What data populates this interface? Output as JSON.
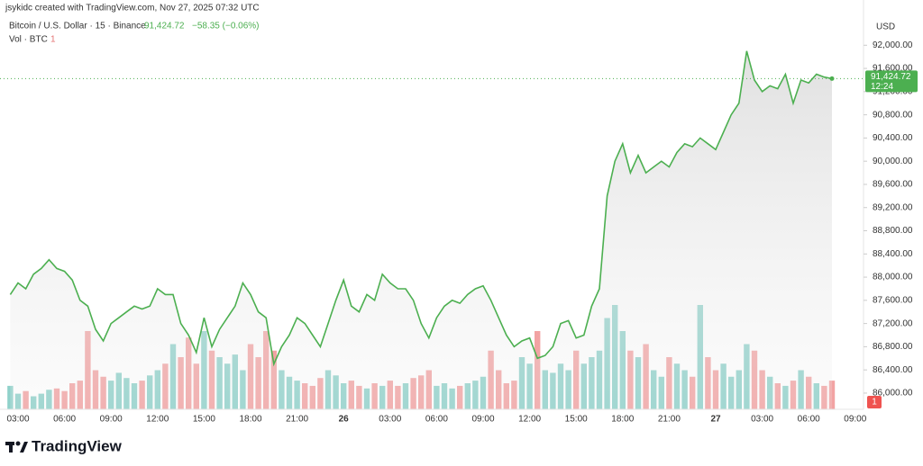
{
  "header": {
    "credit": "jsykidc created with TradingView.com, Nov 27, 2025 07:32 UTC",
    "price": "91,424.72",
    "change": "−58.35 (−0.06%)",
    "vol_value": "1"
  },
  "footer": {
    "brand": "TradingView"
  },
  "chart_data": {
    "type": "line",
    "currency": "USD",
    "categories": [
      null,
      "03:00",
      null,
      null,
      null,
      null,
      null,
      "06:00",
      null,
      null,
      null,
      null,
      null,
      "09:00",
      null,
      null,
      null,
      null,
      null,
      "12:00",
      null,
      null,
      null,
      null,
      null,
      "15:00",
      null,
      null,
      null,
      null,
      null,
      "18:00",
      null,
      null,
      null,
      null,
      null,
      "21:00",
      null,
      null,
      null,
      null,
      null,
      "26",
      null,
      null,
      null,
      null,
      null,
      "03:00",
      null,
      null,
      null,
      null,
      null,
      "06:00",
      null,
      null,
      null,
      null,
      null,
      "09:00",
      null,
      null,
      null,
      null,
      null,
      "12:00",
      null,
      null,
      null,
      null,
      null,
      "15:00",
      null,
      null,
      null,
      null,
      null,
      "18:00",
      null,
      null,
      null,
      null,
      null,
      "21:00",
      null,
      null,
      null,
      null,
      null,
      "27",
      null,
      null,
      null,
      null,
      null,
      "03:00",
      null,
      null,
      null,
      null,
      null,
      "06:00",
      null,
      null,
      null,
      null,
      null,
      "09:00"
    ],
    "series": [
      {
        "name": "Bitcoin / U.S. Dollar · 15 · Binance",
        "color": "#4caf50",
        "values": [
          87700,
          87900,
          87800,
          88050,
          88150,
          88300,
          88150,
          88100,
          87950,
          87600,
          87500,
          87100,
          86900,
          87200,
          87300,
          87400,
          87500,
          87450,
          87500,
          87800,
          87700,
          87700,
          87200,
          87000,
          86700,
          87300,
          86800,
          87100,
          87300,
          87500,
          87900,
          87700,
          87400,
          87300,
          86500,
          86800,
          87000,
          87300,
          87200,
          87000,
          86800,
          87200,
          87600,
          87950,
          87500,
          87400,
          87700,
          87600,
          88050,
          87900,
          87800,
          87800,
          87600,
          87200,
          86950,
          87300,
          87500,
          87600,
          87550,
          87700,
          87800,
          87850,
          87600,
          87300,
          87000,
          86800,
          86900,
          86950,
          86600,
          86650,
          86800,
          87200,
          87250,
          86950,
          87000,
          87500,
          87800,
          89400,
          90000,
          90300,
          89800,
          90100,
          89800,
          89900,
          90000,
          89900,
          90150,
          90300,
          90250,
          90400,
          90300,
          90200,
          90500,
          90800,
          91000,
          91900,
          91400,
          91200,
          91300,
          91250,
          91500,
          91000,
          91400,
          91350,
          91500,
          91450,
          91424.72,
          null,
          null,
          null
        ]
      }
    ],
    "volume": {
      "name": "Vol · BTC",
      "up_color": "#8fd1ca",
      "down_color": "#f2a3a3",
      "ylim": [
        0,
        300
      ],
      "badge": "1",
      "values": [
        18,
        12,
        14,
        10,
        12,
        15,
        16,
        14,
        20,
        22,
        60,
        30,
        25,
        22,
        28,
        24,
        20,
        22,
        26,
        30,
        35,
        50,
        40,
        55,
        35,
        60,
        45,
        40,
        35,
        42,
        30,
        50,
        40,
        60,
        45,
        30,
        25,
        22,
        20,
        18,
        24,
        30,
        26,
        20,
        22,
        18,
        16,
        20,
        18,
        22,
        18,
        20,
        24,
        26,
        30,
        18,
        20,
        16,
        18,
        20,
        22,
        25,
        45,
        30,
        20,
        22,
        40,
        35,
        60,
        30,
        28,
        35,
        30,
        45,
        35,
        40,
        45,
        70,
        80,
        60,
        45,
        40,
        50,
        30,
        25,
        40,
        35,
        30,
        25,
        80,
        40,
        30,
        35,
        25,
        30,
        50,
        45,
        30,
        25,
        20,
        18,
        22,
        30,
        25,
        20,
        18,
        22,
        null,
        null,
        null
      ]
    },
    "last_price": {
      "value": 91424.72,
      "label": "91,424.72"
    },
    "countdown": "12:24",
    "ylim": [
      85720,
      92470
    ],
    "yticks": [
      {
        "value": 86000,
        "label": "86,000.00"
      },
      {
        "value": 86400,
        "label": "86,400.00"
      },
      {
        "value": 86800,
        "label": "86,800.00"
      },
      {
        "value": 87200,
        "label": "87,200.00"
      },
      {
        "value": 87600,
        "label": "87,600.00"
      },
      {
        "value": 88000,
        "label": "88,000.00"
      },
      {
        "value": 88400,
        "label": "88,400.00"
      },
      {
        "value": 88800,
        "label": "88,800.00"
      },
      {
        "value": 89200,
        "label": "89,200.00"
      },
      {
        "value": 89600,
        "label": "89,600.00"
      },
      {
        "value": 90000,
        "label": "90,000.00"
      },
      {
        "value": 90400,
        "label": "90,400.00"
      },
      {
        "value": 90800,
        "label": "90,800.00"
      },
      {
        "value": 91200,
        "label": "91,200.00"
      },
      {
        "value": 91600,
        "label": "91,600.00"
      },
      {
        "value": 92000,
        "label": "92,000.00"
      }
    ],
    "grid": false
  }
}
